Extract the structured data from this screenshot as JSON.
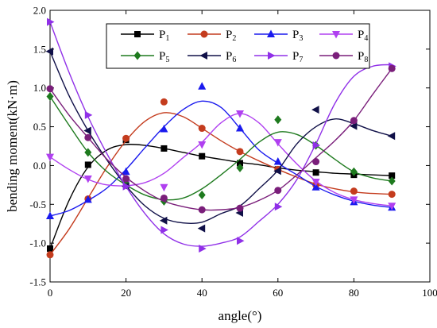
{
  "chart_data": {
    "type": "line",
    "xlabel": "angle(°)",
    "ylabel": "bending moment(kN·m)",
    "xlim": [
      0,
      100
    ],
    "ylim": [
      -1.5,
      2.0
    ],
    "x_ticks": [
      0,
      20,
      40,
      60,
      80,
      100
    ],
    "y_ticks": [
      -1.5,
      -1.0,
      -0.5,
      0.0,
      0.5,
      1.0,
      1.5,
      2.0
    ],
    "x_tick_labels": [
      "0",
      "20",
      "40",
      "60",
      "80",
      "100"
    ],
    "y_tick_labels": [
      "-1.5",
      "-1.0",
      "-0.5",
      "0.0",
      "0.5",
      "1.0",
      "1.5",
      "2.0"
    ],
    "grid": false,
    "legend_position": "top-center",
    "x": [
      0,
      10,
      20,
      30,
      40,
      50,
      60,
      70,
      80,
      90
    ],
    "series": [
      {
        "name": "P",
        "sub": "1",
        "color": "#000000",
        "marker": "square",
        "values": [
          -1.07,
          0.01,
          0.33,
          0.22,
          0.12,
          0.03,
          -0.05,
          -0.09,
          -0.12,
          -0.13
        ],
        "curve": [
          [
            0,
            -1.07
          ],
          [
            5,
            -0.45
          ],
          [
            10,
            -0.02
          ],
          [
            15,
            0.2
          ],
          [
            20,
            0.27
          ],
          [
            25,
            0.26
          ],
          [
            30,
            0.22
          ],
          [
            35,
            0.17
          ],
          [
            40,
            0.12
          ],
          [
            45,
            0.08
          ],
          [
            50,
            0.04
          ],
          [
            55,
            0.01
          ],
          [
            60,
            -0.03
          ],
          [
            65,
            -0.06
          ],
          [
            70,
            -0.08
          ],
          [
            75,
            -0.1
          ],
          [
            80,
            -0.11
          ],
          [
            85,
            -0.12
          ],
          [
            90,
            -0.13
          ]
        ]
      },
      {
        "name": "P",
        "sub": "2",
        "color": "#c43c1e",
        "marker": "circle",
        "values": [
          -1.15,
          -0.43,
          0.35,
          0.82,
          0.48,
          0.18,
          -0.05,
          -0.25,
          -0.33,
          -0.37
        ],
        "curve": [
          [
            0,
            -1.15
          ],
          [
            5,
            -0.82
          ],
          [
            10,
            -0.42
          ],
          [
            15,
            -0.02
          ],
          [
            20,
            0.32
          ],
          [
            25,
            0.57
          ],
          [
            30,
            0.68
          ],
          [
            35,
            0.63
          ],
          [
            40,
            0.48
          ],
          [
            45,
            0.32
          ],
          [
            50,
            0.18
          ],
          [
            55,
            0.06
          ],
          [
            60,
            -0.05
          ],
          [
            65,
            -0.15
          ],
          [
            70,
            -0.24
          ],
          [
            75,
            -0.3
          ],
          [
            80,
            -0.34
          ],
          [
            85,
            -0.36
          ],
          [
            90,
            -0.37
          ]
        ]
      },
      {
        "name": "P",
        "sub": "3",
        "color": "#1a1aee",
        "marker": "triangle-up",
        "values": [
          -0.65,
          -0.44,
          -0.08,
          0.47,
          1.02,
          0.48,
          0.05,
          -0.28,
          -0.47,
          -0.54
        ],
        "curve": [
          [
            0,
            -0.65
          ],
          [
            5,
            -0.58
          ],
          [
            10,
            -0.45
          ],
          [
            15,
            -0.29
          ],
          [
            20,
            -0.05
          ],
          [
            25,
            0.23
          ],
          [
            30,
            0.5
          ],
          [
            35,
            0.72
          ],
          [
            40,
            0.83
          ],
          [
            45,
            0.75
          ],
          [
            50,
            0.48
          ],
          [
            55,
            0.2
          ],
          [
            60,
            0.03
          ],
          [
            65,
            -0.12
          ],
          [
            70,
            -0.27
          ],
          [
            75,
            -0.38
          ],
          [
            80,
            -0.46
          ],
          [
            85,
            -0.51
          ],
          [
            90,
            -0.54
          ]
        ]
      },
      {
        "name": "P",
        "sub": "4",
        "color": "#b040f0",
        "marker": "triangle-down",
        "values": [
          0.11,
          -0.17,
          -0.24,
          -0.28,
          0.27,
          0.67,
          0.3,
          -0.21,
          -0.44,
          -0.52
        ],
        "curve": [
          [
            0,
            0.11
          ],
          [
            5,
            -0.05
          ],
          [
            10,
            -0.18
          ],
          [
            15,
            -0.25
          ],
          [
            20,
            -0.26
          ],
          [
            25,
            -0.22
          ],
          [
            30,
            -0.1
          ],
          [
            35,
            0.1
          ],
          [
            40,
            0.3
          ],
          [
            45,
            0.55
          ],
          [
            50,
            0.67
          ],
          [
            55,
            0.55
          ],
          [
            60,
            0.28
          ],
          [
            65,
            0.02
          ],
          [
            70,
            -0.2
          ],
          [
            75,
            -0.35
          ],
          [
            80,
            -0.44
          ],
          [
            85,
            -0.49
          ],
          [
            90,
            -0.52
          ]
        ]
      },
      {
        "name": "P",
        "sub": "5",
        "color": "#1e7a1e",
        "marker": "diamond",
        "values": [
          0.89,
          0.17,
          -0.23,
          -0.46,
          -0.38,
          -0.03,
          0.59,
          0.26,
          -0.08,
          -0.2
        ],
        "curve": [
          [
            0,
            0.89
          ],
          [
            5,
            0.52
          ],
          [
            10,
            0.17
          ],
          [
            15,
            -0.08
          ],
          [
            20,
            -0.25
          ],
          [
            25,
            -0.38
          ],
          [
            30,
            -0.44
          ],
          [
            35,
            -0.42
          ],
          [
            40,
            -0.3
          ],
          [
            45,
            -0.12
          ],
          [
            50,
            0.08
          ],
          [
            55,
            0.3
          ],
          [
            60,
            0.43
          ],
          [
            65,
            0.4
          ],
          [
            70,
            0.26
          ],
          [
            75,
            0.08
          ],
          [
            80,
            -0.08
          ],
          [
            85,
            -0.16
          ],
          [
            90,
            -0.2
          ]
        ]
      },
      {
        "name": "P",
        "sub": "6",
        "color": "#101048",
        "marker": "triangle-left",
        "values": [
          1.47,
          0.45,
          -0.27,
          -0.71,
          -0.81,
          -0.61,
          -0.07,
          0.72,
          0.51,
          0.38
        ],
        "curve": [
          [
            0,
            1.47
          ],
          [
            5,
            0.9
          ],
          [
            10,
            0.45
          ],
          [
            15,
            0.07
          ],
          [
            20,
            -0.26
          ],
          [
            25,
            -0.52
          ],
          [
            30,
            -0.68
          ],
          [
            35,
            -0.74
          ],
          [
            40,
            -0.73
          ],
          [
            45,
            -0.62
          ],
          [
            50,
            -0.52
          ],
          [
            55,
            -0.3
          ],
          [
            60,
            -0.06
          ],
          [
            65,
            0.28
          ],
          [
            70,
            0.5
          ],
          [
            75,
            0.6
          ],
          [
            80,
            0.54
          ],
          [
            85,
            0.45
          ],
          [
            90,
            0.38
          ]
        ]
      },
      {
        "name": "P",
        "sub": "7",
        "color": "#9030e8",
        "marker": "triangle-right",
        "values": [
          1.85,
          0.65,
          -0.27,
          -0.83,
          -1.07,
          -0.97,
          -0.53,
          0.26,
          1.32,
          1.28
        ],
        "curve": [
          [
            0,
            1.85
          ],
          [
            5,
            1.2
          ],
          [
            10,
            0.63
          ],
          [
            15,
            0.15
          ],
          [
            20,
            -0.27
          ],
          [
            25,
            -0.62
          ],
          [
            30,
            -0.88
          ],
          [
            35,
            -1.01
          ],
          [
            40,
            -1.04
          ],
          [
            45,
            -1.0
          ],
          [
            50,
            -0.92
          ],
          [
            55,
            -0.72
          ],
          [
            60,
            -0.5
          ],
          [
            65,
            -0.18
          ],
          [
            70,
            0.28
          ],
          [
            75,
            0.8
          ],
          [
            80,
            1.15
          ],
          [
            85,
            1.28
          ],
          [
            90,
            1.3
          ]
        ]
      },
      {
        "name": "P",
        "sub": "8",
        "color": "#7a1e7a",
        "marker": "circle",
        "values": [
          0.99,
          0.36,
          -0.17,
          -0.42,
          -0.57,
          -0.55,
          -0.32,
          0.05,
          0.58,
          1.25
        ],
        "curve": [
          [
            0,
            0.99
          ],
          [
            5,
            0.65
          ],
          [
            10,
            0.36
          ],
          [
            15,
            0.08
          ],
          [
            20,
            -0.15
          ],
          [
            25,
            -0.33
          ],
          [
            30,
            -0.46
          ],
          [
            35,
            -0.53
          ],
          [
            40,
            -0.57
          ],
          [
            45,
            -0.57
          ],
          [
            50,
            -0.54
          ],
          [
            55,
            -0.45
          ],
          [
            60,
            -0.32
          ],
          [
            65,
            -0.12
          ],
          [
            70,
            0.1
          ],
          [
            75,
            0.32
          ],
          [
            80,
            0.58
          ],
          [
            85,
            0.92
          ],
          [
            90,
            1.25
          ]
        ]
      }
    ]
  }
}
